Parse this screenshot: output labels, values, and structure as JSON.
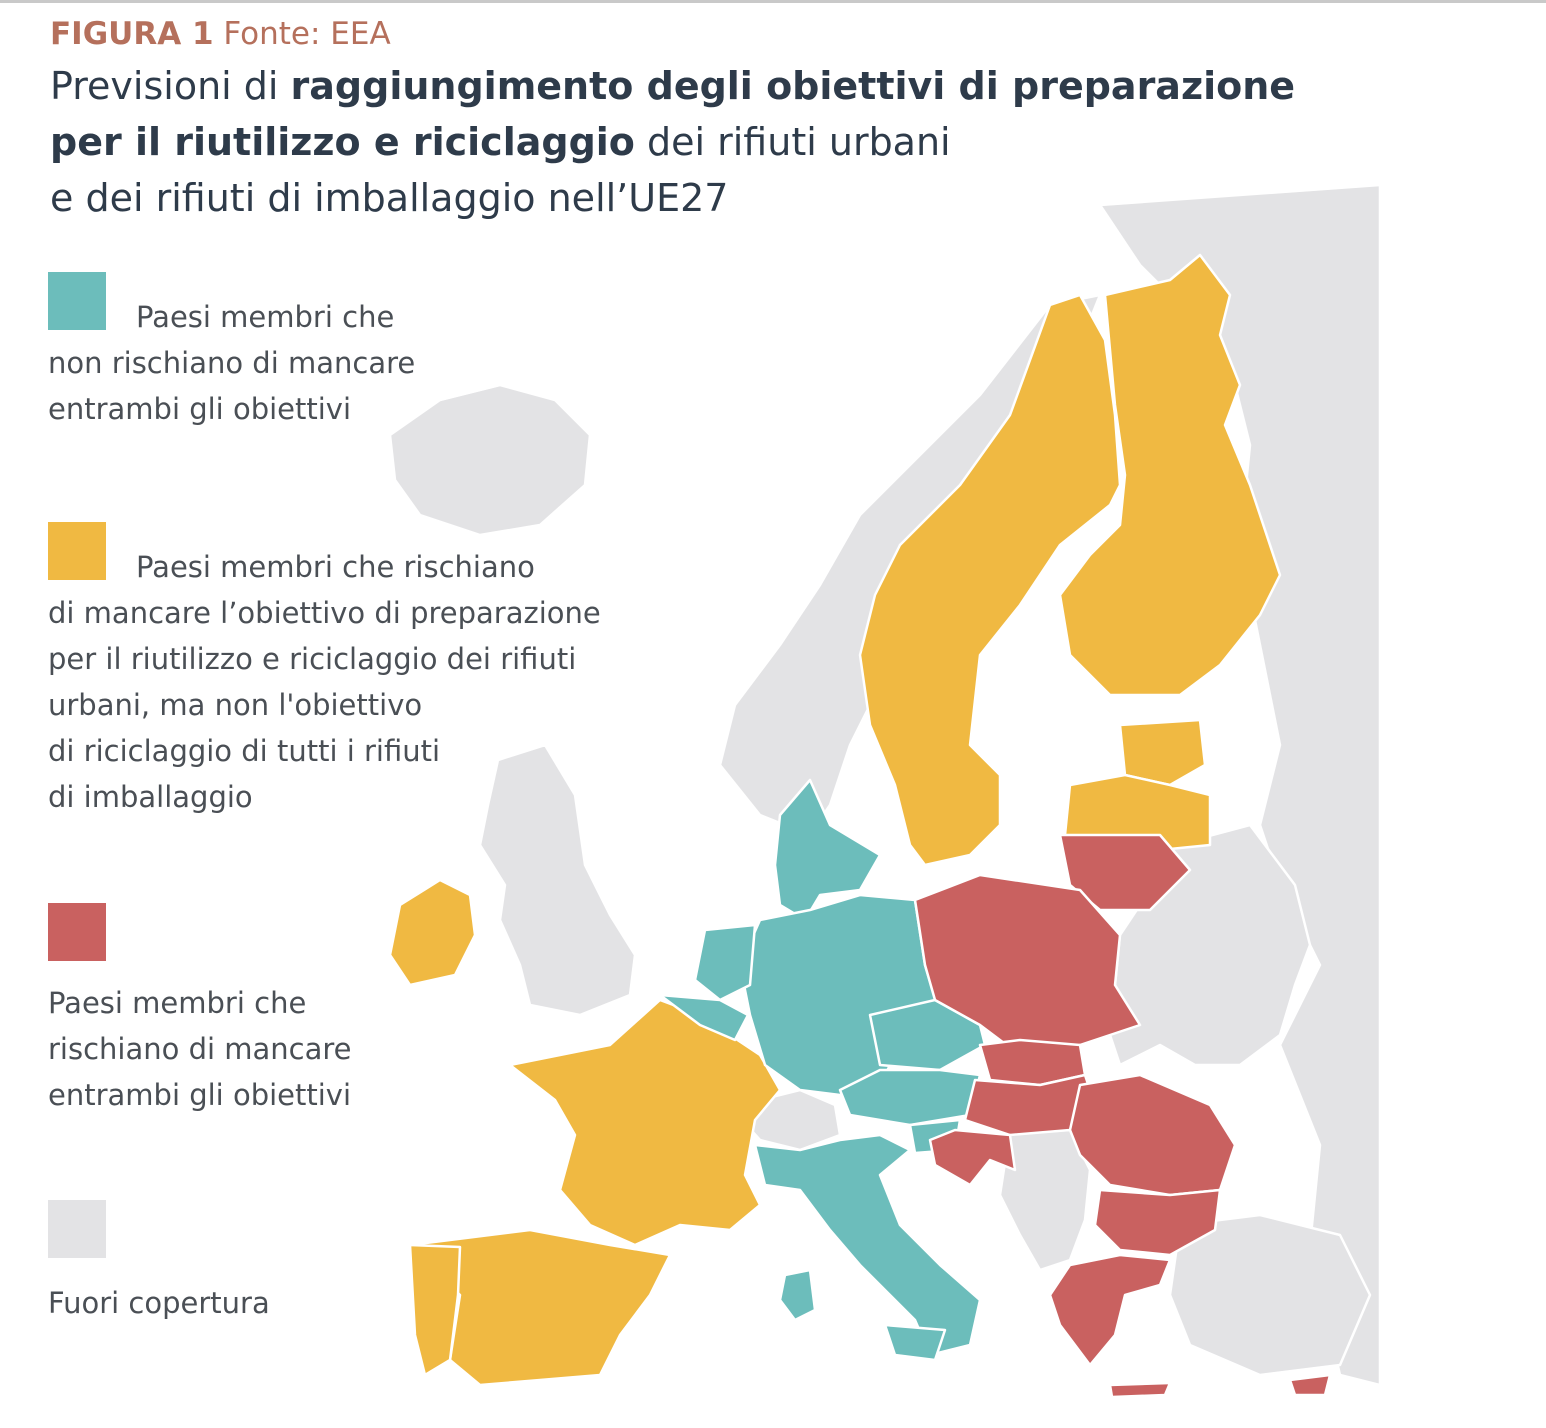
{
  "figure": {
    "label": "FIGURA 1",
    "source": "Fonte: EEA"
  },
  "title": {
    "line1_normal": "Previsioni di ",
    "line1_bold": "raggiungimento degli obiettivi di preparazione",
    "line2_bold": "per il riutilizzo e riciclaggio",
    "line2_normal": " dei rifiuti urbani",
    "line3_normal": "e dei rifiuti di imballaggio nell’UE27"
  },
  "colors": {
    "teal": "#6cbdbb",
    "yellow": "#f0b942",
    "red": "#c96160",
    "grey": "#e3e3e5",
    "background_sea": "#ffffff",
    "border": "#ffffff"
  },
  "legend": [
    {
      "id": "no-risk",
      "color": "#6cbdbb",
      "text": "Paesi membri che\nnon rischiano di mancare\nentrambi gli obiettivi"
    },
    {
      "id": "risk-municipal",
      "color": "#f0b942",
      "text": "Paesi membri che rischiano\ndi mancare l’obiettivo di preparazione\nper il riutilizzo e riciclaggio dei rifiuti\nurbani, ma non l'obiettivo\ndi riciclaggio di tutti i rifiuti\ndi imballaggio"
    },
    {
      "id": "risk-both",
      "color": "#c96160",
      "text": "Paesi membri che\nrischiano di mancare\nentrambi gli obiettivi"
    },
    {
      "id": "not-covered",
      "color": "#e3e3e5",
      "text": "Fuori copertura"
    }
  ],
  "countries": {
    "no_risk": [
      "Germany",
      "Denmark",
      "Netherlands",
      "Belgium",
      "Austria",
      "Czechia",
      "Slovenia",
      "Italy"
    ],
    "risk_municipal": [
      "Sweden",
      "Finland",
      "Estonia",
      "Latvia",
      "France",
      "Spain",
      "Portugal",
      "Ireland"
    ],
    "risk_both": [
      "Poland",
      "Lithuania",
      "Slovakia",
      "Hungary",
      "Romania",
      "Bulgaria",
      "Croatia",
      "Greece",
      "Cyprus"
    ],
    "not_covered": [
      "Norway",
      "United Kingdom",
      "Iceland",
      "Switzerland",
      "Belarus",
      "Ukraine",
      "Serbia",
      "Turkey"
    ]
  }
}
